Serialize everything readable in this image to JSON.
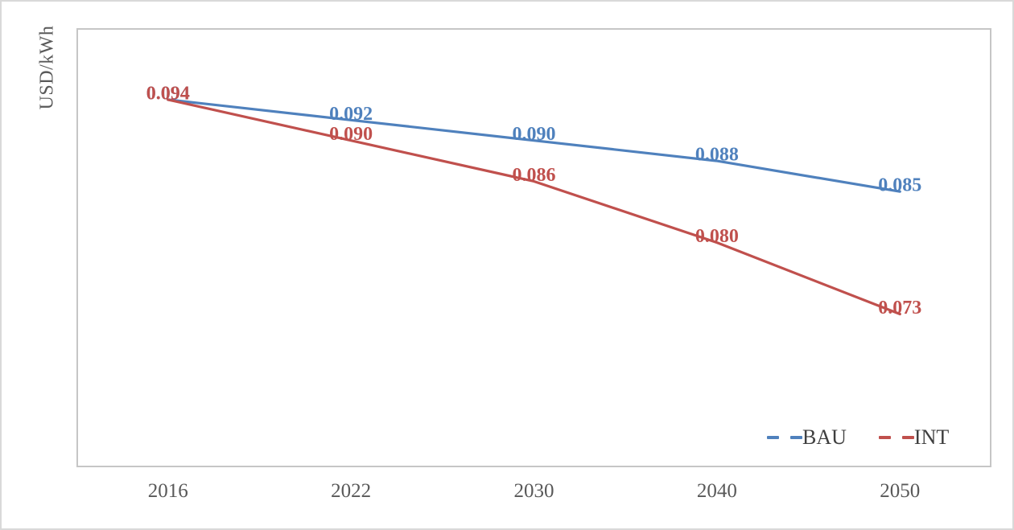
{
  "figure": {
    "y_axis_title": "USD/kWh"
  },
  "chart_data": {
    "type": "line",
    "title": "",
    "xlabel": "",
    "ylabel": "USD/kWh",
    "categories": [
      "2016",
      "2022",
      "2030",
      "2040",
      "2050"
    ],
    "series": [
      {
        "name": "BAU",
        "color": "#4F81BD",
        "values": [
          0.094,
          0.092,
          0.09,
          0.088,
          0.085
        ],
        "point_labels": [
          "0.094",
          "0.092",
          "0.090",
          "0.088",
          "0.085"
        ]
      },
      {
        "name": "INT",
        "color": "#C0504D",
        "values": [
          0.094,
          0.09,
          0.086,
          0.08,
          0.073
        ],
        "point_labels": [
          "0.094",
          "0.090",
          "0.086",
          "0.080",
          "0.073"
        ]
      }
    ],
    "ylim": [
      0.058,
      0.101
    ],
    "y_tick_labels_visible": false,
    "grid": false,
    "data_labels": true,
    "legend_position": "inside-bottom-right",
    "tick_label_color": "#595959",
    "legend_text_color": "#3F3F3F",
    "plot_border_color": "#C6C6C6"
  }
}
